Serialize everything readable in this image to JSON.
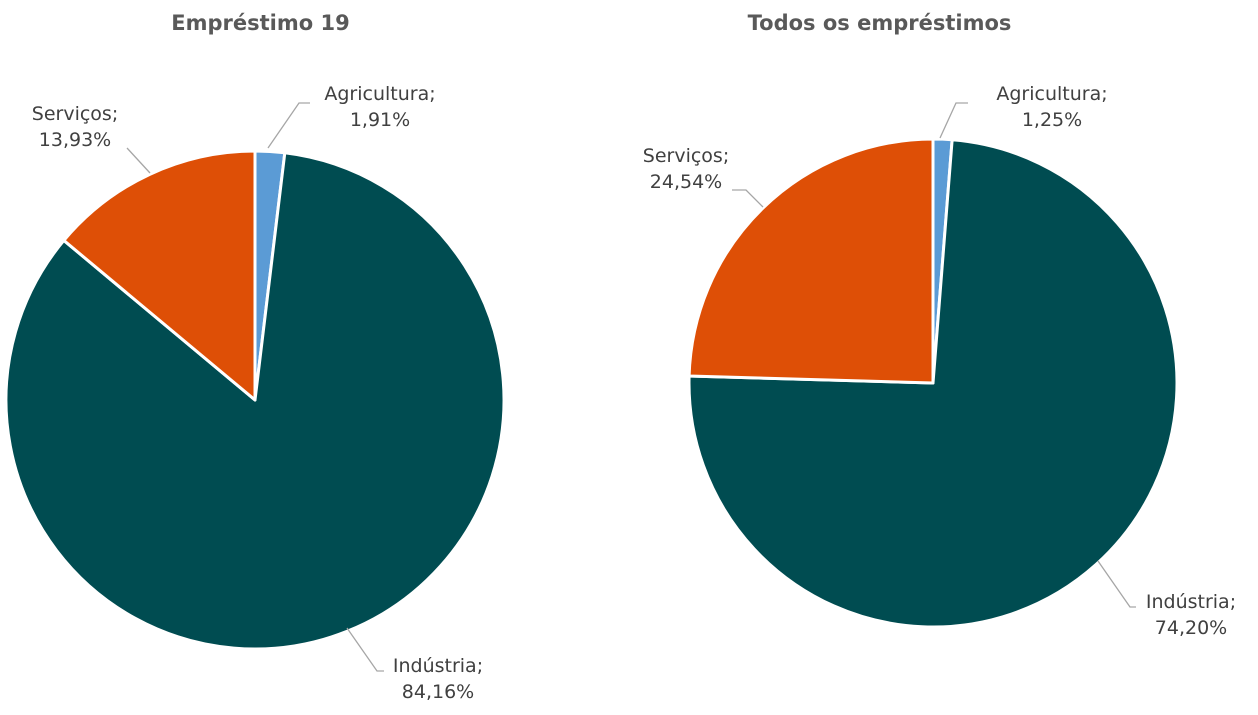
{
  "colors": {
    "Agricultura": "#5b9bd5",
    "Indústria": "#004c51",
    "Serviços": "#de4f06",
    "leader": "#a6a6a6",
    "text": "#404040",
    "title": "#595959"
  },
  "chart_data": [
    {
      "type": "pie",
      "title": "Empréstimo 19",
      "categories": [
        "Agricultura",
        "Indústria",
        "Serviços"
      ],
      "values": [
        1.91,
        84.16,
        13.93
      ],
      "data_labels": [
        [
          "Agricultura;",
          "1,91%"
        ],
        [
          "Indústria;",
          "84,16%"
        ],
        [
          "Serviços;",
          "13,93%"
        ]
      ],
      "start_angle_deg": 0,
      "direction": "clockwise"
    },
    {
      "type": "pie",
      "title": "Todos os empréstimos",
      "categories": [
        "Agricultura",
        "Indústria",
        "Serviços"
      ],
      "values": [
        1.25,
        74.2,
        24.54
      ],
      "data_labels": [
        [
          "Agricultura;",
          "1,25%"
        ],
        [
          "Indústria;",
          "74,20%"
        ],
        [
          "Serviços;",
          "24,54%"
        ]
      ],
      "start_angle_deg": 0,
      "direction": "clockwise"
    }
  ]
}
